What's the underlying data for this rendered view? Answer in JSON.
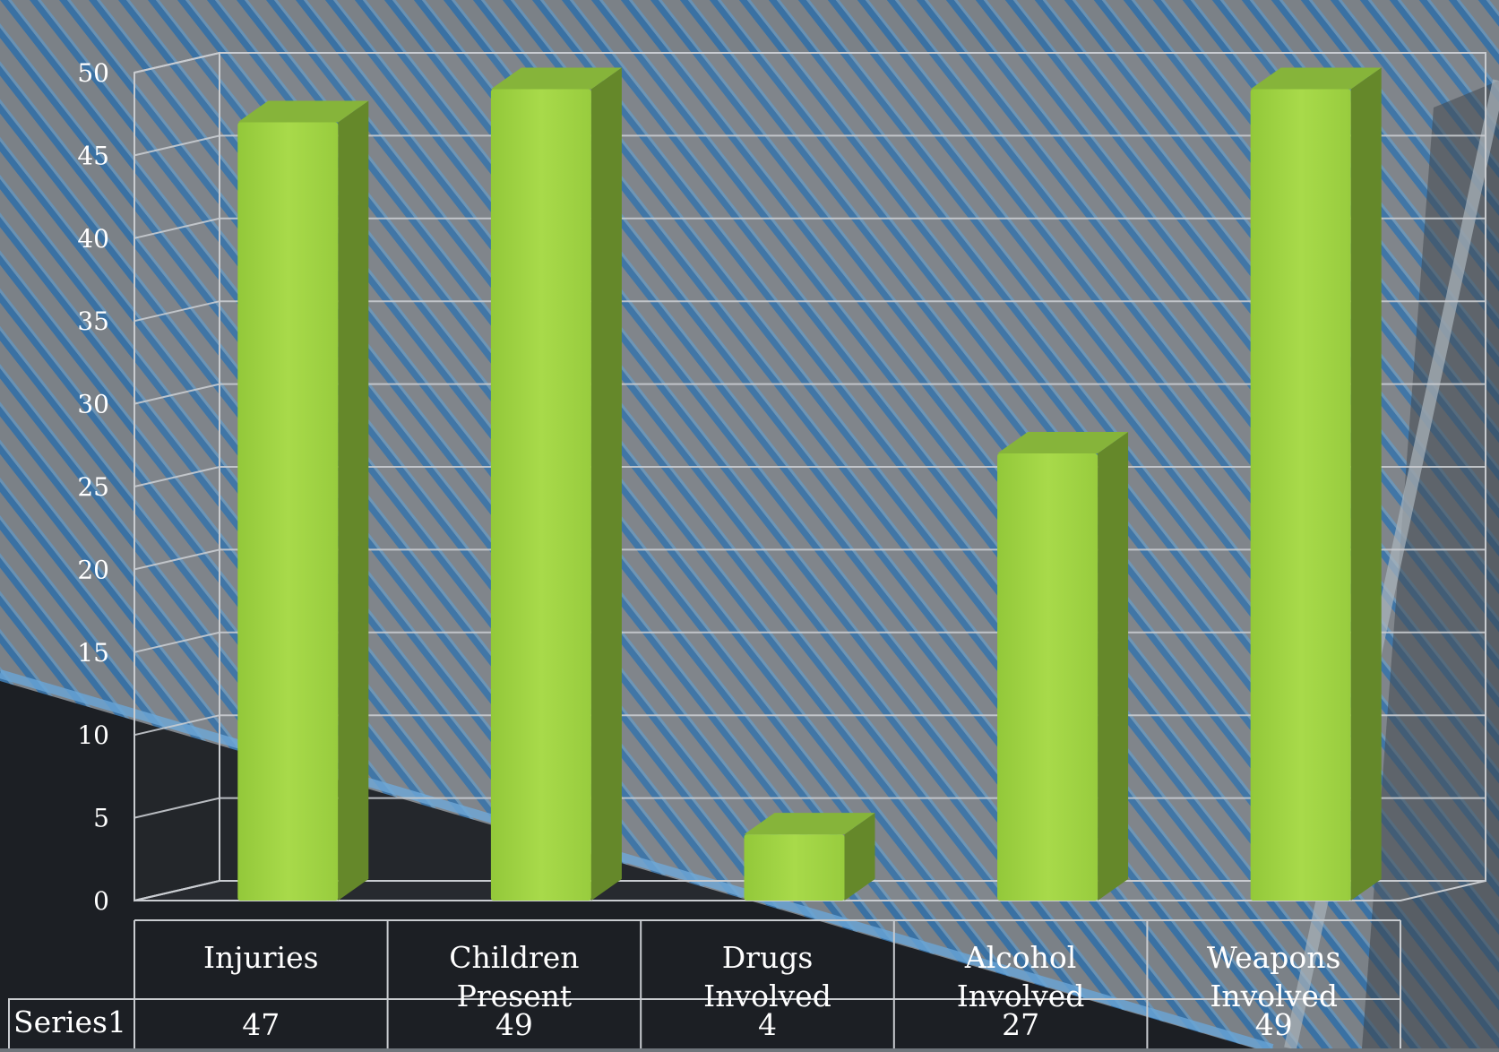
{
  "chart_data": {
    "type": "bar",
    "title": "",
    "xlabel": "",
    "ylabel": "",
    "ylim": [
      0,
      50
    ],
    "yticks": [
      0,
      5,
      10,
      15,
      20,
      25,
      30,
      35,
      40,
      45,
      50
    ],
    "grid": true,
    "categories": [
      [
        "Injuries"
      ],
      [
        "Children",
        "Present"
      ],
      [
        "Drugs",
        "Involved"
      ],
      [
        "Alcohol",
        "Involved"
      ],
      [
        "Weapons",
        "Involved"
      ]
    ],
    "series": [
      {
        "name": "Series1",
        "values": [
          47,
          49,
          4,
          27,
          49
        ]
      }
    ],
    "data_table": true,
    "colors": {
      "bar_front": "#a2d544",
      "bar_side": "#65882a",
      "bar_top": "#86b43a",
      "grid": "#c9ccd0",
      "text": "#ffffff"
    }
  }
}
